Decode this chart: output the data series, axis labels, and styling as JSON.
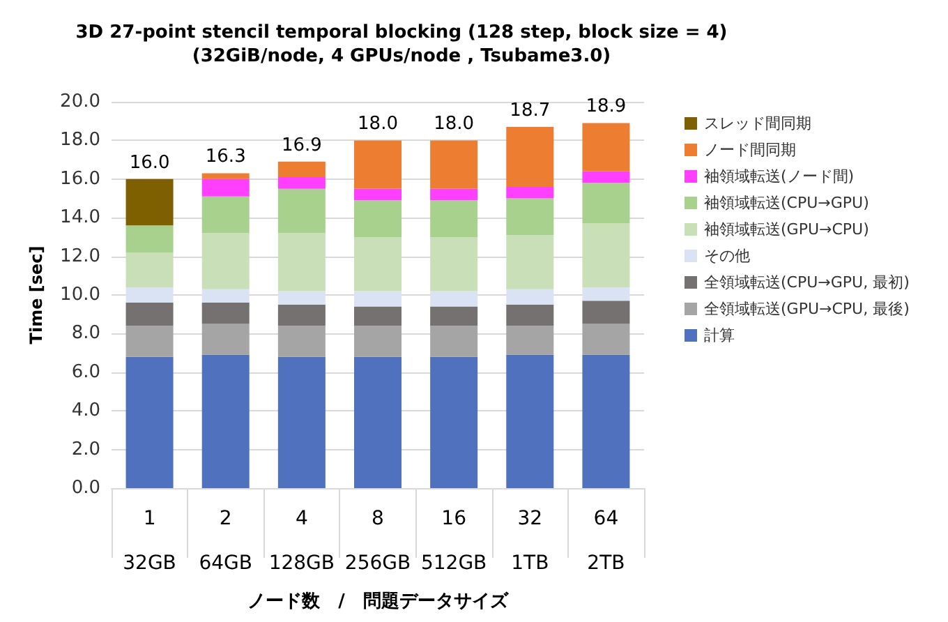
{
  "chart_data": {
    "type": "bar",
    "title": "3D 27-point stencil temporal blocking (128 step, block size = 4)",
    "subtitle": "(32GiB/node, 4 GPUs/node , Tsubame3.0)",
    "xlabel": "ノード数　/　問題データサイズ",
    "ylabel": "Time [sec]",
    "categories": [
      "1\n32GB",
      "2\n64GB",
      "4\n128GB",
      "8\n256GB",
      "16\n512GB",
      "32\n1TB",
      "64\n2TB"
    ],
    "stacked": true,
    "grid": "y",
    "legend": "right",
    "ylim": [
      0,
      20
    ],
    "yticks": [
      {
        "value": 0,
        "label": "0.0"
      },
      {
        "value": 2,
        "label": "2.0"
      },
      {
        "value": 4,
        "label": "4.0"
      },
      {
        "value": 6,
        "label": "6.0"
      },
      {
        "value": 8,
        "label": "8.0"
      },
      {
        "value": 10,
        "label": "10.0"
      },
      {
        "value": 12,
        "label": "12.0"
      },
      {
        "value": 14,
        "label": "14.0"
      },
      {
        "value": 16,
        "label": "16.0"
      },
      {
        "value": 18,
        "label": "18.0"
      },
      {
        "value": 20,
        "label": "20.0"
      }
    ],
    "totals": [
      "16.0",
      "16.3",
      "16.9",
      "18.0",
      "18.0",
      "18.7",
      "18.9"
    ],
    "series": [
      {
        "name": "計算",
        "color": "#4f71be",
        "values": [
          6.8,
          6.9,
          6.8,
          6.8,
          6.8,
          6.9,
          6.9
        ]
      },
      {
        "name": "全領域転送(GPU→CPU, 最後)",
        "color": "#a5a5a5",
        "values": [
          1.6,
          1.6,
          1.6,
          1.6,
          1.6,
          1.5,
          1.6
        ]
      },
      {
        "name": "全領域転送(CPU→GPU, 最初)",
        "color": "#767171",
        "values": [
          1.2,
          1.1,
          1.1,
          1.0,
          1.0,
          1.1,
          1.2
        ]
      },
      {
        "name": "その他",
        "color": "#dae3f3",
        "values": [
          0.8,
          0.7,
          0.7,
          0.8,
          0.8,
          0.8,
          0.7
        ]
      },
      {
        "name": "袖領域転送(GPU→CPU)",
        "color": "#c9dfb8",
        "values": [
          1.8,
          2.9,
          3.0,
          2.8,
          2.8,
          2.8,
          3.3
        ]
      },
      {
        "name": "袖領域転送(CPU→GPU)",
        "color": "#a9d18e",
        "values": [
          1.4,
          1.9,
          2.3,
          1.9,
          1.9,
          1.9,
          2.1
        ]
      },
      {
        "name": "袖領域転送(ノード間)",
        "color": "#ff3fff",
        "values": [
          0,
          0.9,
          0.6,
          0.6,
          0.6,
          0.6,
          0.6
        ]
      },
      {
        "name": "ノード間同期",
        "color": "#ed7d31",
        "values": [
          0,
          0.3,
          0.8,
          2.5,
          2.5,
          3.1,
          2.5
        ]
      },
      {
        "name": "スレッド間同期",
        "color": "#7f6000",
        "values": [
          2.4,
          0,
          0,
          0,
          0,
          0,
          0
        ]
      }
    ]
  }
}
